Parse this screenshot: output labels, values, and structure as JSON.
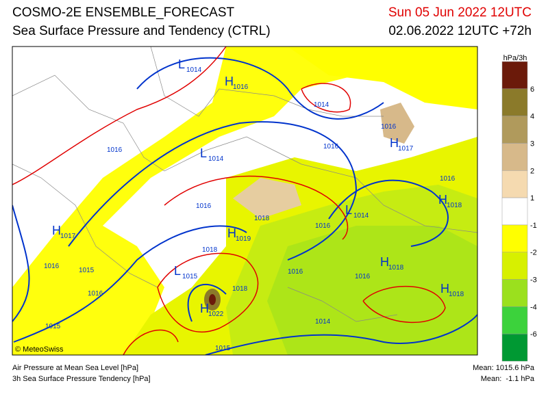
{
  "header": {
    "title": "COSMO-2E ENSEMBLE_FORECAST",
    "subtitle": "Sea Surface Pressure and Tendency (CTRL)",
    "valid_time": "Sun 05 Jun 2022 12UTC",
    "run_time": "02.06.2022 12UTC +72h"
  },
  "legend": {
    "unit": "hPa/3h",
    "labels": [
      "6",
      "4",
      "3",
      "2",
      "1",
      "-1",
      "-2",
      "-3",
      "-4",
      "-6"
    ]
  },
  "map": {
    "copyright": "© MeteoSwiss",
    "labels": [
      {
        "letter": "L",
        "value": "1014"
      },
      {
        "letter": "H",
        "value": "1016"
      },
      {
        "value": "1014"
      },
      {
        "value": "1016"
      },
      {
        "letter": "H",
        "value": "1017"
      },
      {
        "value": "1016"
      },
      {
        "letter": "L",
        "value": "1014"
      },
      {
        "value": "1016"
      },
      {
        "value": "1016"
      },
      {
        "letter": "H",
        "value": "1018"
      },
      {
        "value": "1016"
      },
      {
        "letter": "L",
        "value": "1014"
      },
      {
        "value": "1018"
      },
      {
        "value": "1016"
      },
      {
        "letter": "H",
        "value": "1017"
      },
      {
        "letter": "H",
        "value": "1019"
      },
      {
        "value": "1018"
      },
      {
        "value": "1016"
      },
      {
        "value": "1015"
      },
      {
        "letter": "H",
        "value": "1018"
      },
      {
        "letter": "L",
        "value": "1015"
      },
      {
        "value": "1016"
      },
      {
        "value": "1016"
      },
      {
        "value": "1018"
      },
      {
        "value": "1016"
      },
      {
        "letter": "H",
        "value": "1018"
      },
      {
        "letter": "H",
        "value": "1022"
      },
      {
        "value": "1014"
      },
      {
        "value": "1015"
      },
      {
        "value": "1015"
      }
    ]
  },
  "footer": {
    "line1": "Air Pressure at Mean Sea Level [hPa]",
    "line2": "3h Sea Surface Pressure Tendency [hPa]",
    "mean_pressure": "Mean: 1015.6 hPa",
    "mean_tendency": "Mean:  -1.1 hPa"
  }
}
